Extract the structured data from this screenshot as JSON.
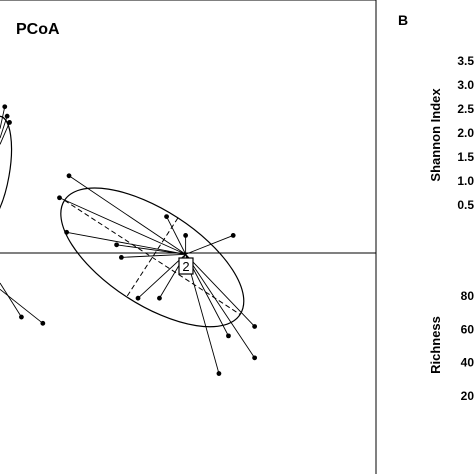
{
  "panels": {
    "a": {
      "title": "PCoA",
      "group_label": "2"
    },
    "b": {
      "letter": "B",
      "shannon": {
        "label": "Shannon Index",
        "ticks": [
          "0.5",
          "1.0",
          "1.5",
          "2.0",
          "2.5",
          "3.0",
          "3.5"
        ]
      },
      "richness": {
        "label": "Richness",
        "ticks": [
          "20",
          "40",
          "60",
          "80"
        ]
      }
    }
  },
  "chart_data": [
    {
      "type": "scatter",
      "subtype": "pcoa-spider-ellipse",
      "title": "PCoA",
      "group_label": "2",
      "centroid": [
        0.78,
        -0.02
      ],
      "xlim": [
        0,
        1.58
      ],
      "ylim": [
        -0.72,
        0.79
      ],
      "baseline_y": 0,
      "points": [
        {
          "group": "2",
          "x": 0.29,
          "y": 0.23
        },
        {
          "group": "2",
          "x": 0.25,
          "y": 0.16
        },
        {
          "group": "2",
          "x": 0.28,
          "y": 0.05
        },
        {
          "group": "2",
          "x": 0.49,
          "y": 0.01
        },
        {
          "group": "2",
          "x": 0.51,
          "y": -0.03
        },
        {
          "group": "2",
          "x": 0.7,
          "y": 0.1
        },
        {
          "group": "2",
          "x": 0.78,
          "y": 0.04
        },
        {
          "group": "2",
          "x": 0.98,
          "y": 0.04
        },
        {
          "group": "2",
          "x": 0.58,
          "y": -0.16
        },
        {
          "group": "2",
          "x": 0.67,
          "y": -0.16
        },
        {
          "group": "2",
          "x": 0.96,
          "y": -0.28
        },
        {
          "group": "2",
          "x": 1.07,
          "y": -0.25
        },
        {
          "group": "2",
          "x": 0.92,
          "y": -0.4
        },
        {
          "group": "2",
          "x": 1.07,
          "y": -0.35
        },
        {
          "group": "2",
          "x": 0.18,
          "y": -0.24
        },
        {
          "group": "2",
          "x": 0.09,
          "y": -0.22
        },
        {
          "group": "2",
          "x": 0.02,
          "y": 0.45
        },
        {
          "group": "2",
          "x": 0.04,
          "y": 0.4
        },
        {
          "group": "2",
          "x": 0.03,
          "y": 0.42
        }
      ],
      "ellipses": [
        {
          "center": [
            0.64,
            -0.03
          ],
          "semi_major": 0.44,
          "semi_minor": 0.15,
          "angle_deg": -33
        },
        {
          "center": [
            -0.04,
            0.24
          ],
          "semi_major": 0.24,
          "semi_minor": 0.06,
          "angle_deg": 80
        }
      ],
      "grid": false
    },
    {
      "type": "axes-only",
      "panel": "B",
      "ylabel": "Shannon Index",
      "yticks": [
        0.5,
        1.0,
        1.5,
        2.0,
        2.5,
        3.0,
        3.5
      ],
      "ylim": [
        0.5,
        3.5
      ]
    },
    {
      "type": "axes-only",
      "panel": "B",
      "ylabel": "Richness",
      "yticks": [
        20,
        40,
        60,
        80
      ],
      "ylim": [
        20,
        80
      ]
    }
  ]
}
